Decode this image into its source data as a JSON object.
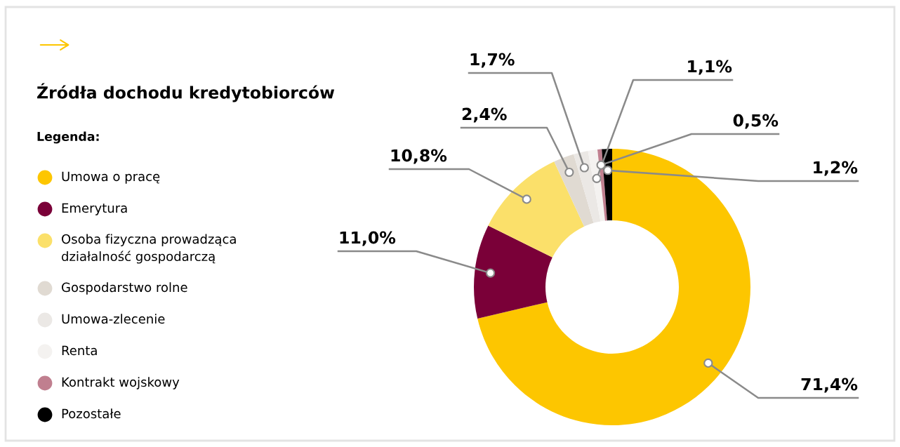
{
  "chart_data": {
    "type": "donut",
    "title": "Źródła dochodu kredytobiorców",
    "legend_title": "Legenda:",
    "legend": "left",
    "categories": [
      "Umowa o pracę",
      "Emerytura",
      "Osoba fizyczna prowadząca\ndziałalność gospodarczą",
      "Gospodarstwo rolne",
      "Umowa-zlecenie",
      "Renta",
      "Kontrakt wojskowy",
      "Pozostałe"
    ],
    "values": [
      71.4,
      11.0,
      10.8,
      2.4,
      1.7,
      1.1,
      0.5,
      1.2
    ],
    "value_labels": [
      "71,4%",
      "11,0%",
      "10,8%",
      "2,4%",
      "1,7%",
      "1,1%",
      "0,5%",
      "1,2%"
    ],
    "colors": [
      "#fdc600",
      "#7a0038",
      "#fbe06a",
      "#e0dad2",
      "#ebe8e5",
      "#f4f2f0",
      "#c07f8f",
      "#000000"
    ]
  }
}
